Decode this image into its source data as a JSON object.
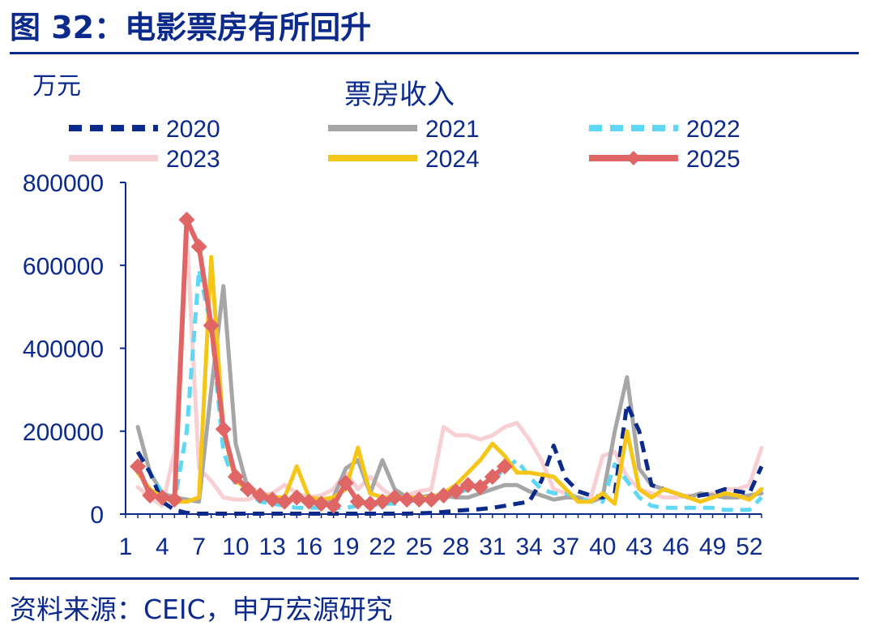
{
  "figure": {
    "title": "图 32：电影票房有所回升",
    "source": "资料来源：CEIC，申万宏源研究"
  },
  "colors": {
    "brand": "#0b2a8c"
  },
  "chart_data": {
    "type": "line",
    "title": "票房收入",
    "ylabel": "万元",
    "xlabel": "",
    "ylim": [
      0,
      800000
    ],
    "xlim": [
      1,
      53
    ],
    "yticks": [
      "0",
      "200000",
      "400000",
      "600000",
      "800000"
    ],
    "ytick_values": [
      0,
      200000,
      400000,
      600000,
      800000
    ],
    "xticks": [
      "1",
      "4",
      "7",
      "10",
      "13",
      "16",
      "19",
      "22",
      "25",
      "28",
      "31",
      "34",
      "37",
      "40",
      "43",
      "46",
      "49",
      "52"
    ],
    "xtick_values": [
      1,
      4,
      7,
      10,
      13,
      16,
      19,
      22,
      25,
      28,
      31,
      34,
      37,
      40,
      43,
      46,
      49,
      52
    ],
    "legend_position": "top",
    "grid": false,
    "series": [
      {
        "name": "2020",
        "color": "#0b2a8c",
        "style": "dashed",
        "x": [
          2,
          3,
          4,
          5,
          6,
          7,
          8,
          9,
          10,
          11,
          12,
          13,
          14,
          15,
          16,
          17,
          18,
          19,
          20,
          21,
          22,
          23,
          24,
          25,
          26,
          27,
          28,
          29,
          30,
          31,
          32,
          33,
          34,
          35,
          36,
          37,
          38,
          39,
          40,
          41,
          42,
          43,
          44,
          45,
          46,
          47,
          48,
          49,
          50,
          51,
          52,
          53
        ],
        "values": [
          150000,
          100000,
          30000,
          10000,
          3000,
          1000,
          1000,
          1000,
          1000,
          1000,
          1000,
          1000,
          1000,
          1000,
          1000,
          1000,
          1000,
          1000,
          1000,
          1000,
          1000,
          1000,
          1000,
          2000,
          3000,
          5000,
          8000,
          10000,
          12000,
          15000,
          20000,
          25000,
          30000,
          80000,
          165000,
          85000,
          55000,
          45000,
          40000,
          50000,
          265000,
          200000,
          70000,
          60000,
          50000,
          40000,
          45000,
          50000,
          60000,
          55000,
          50000,
          115000
        ]
      },
      {
        "name": "2021",
        "color": "#a6a6a6",
        "style": "solid",
        "x": [
          2,
          3,
          4,
          5,
          6,
          7,
          8,
          9,
          10,
          11,
          12,
          13,
          14,
          15,
          16,
          17,
          18,
          19,
          20,
          21,
          22,
          23,
          24,
          25,
          26,
          27,
          28,
          29,
          30,
          31,
          32,
          33,
          34,
          35,
          36,
          37,
          38,
          39,
          40,
          41,
          42,
          43,
          44,
          45,
          46,
          47,
          48,
          49,
          50,
          51,
          52,
          53
        ],
        "values": [
          210000,
          100000,
          50000,
          40000,
          35000,
          30000,
          300000,
          550000,
          170000,
          60000,
          40000,
          30000,
          30000,
          40000,
          30000,
          25000,
          40000,
          110000,
          130000,
          50000,
          130000,
          60000,
          40000,
          40000,
          45000,
          45000,
          40000,
          40000,
          50000,
          60000,
          70000,
          70000,
          55000,
          45000,
          35000,
          40000,
          40000,
          30000,
          40000,
          200000,
          330000,
          110000,
          70000,
          60000,
          50000,
          40000,
          50000,
          45000,
          40000,
          40000,
          45000,
          50000
        ]
      },
      {
        "name": "2022",
        "color": "#5ed8f5",
        "style": "dashed",
        "x": [
          2,
          3,
          4,
          5,
          6,
          7,
          8,
          9,
          10,
          11,
          12,
          13,
          14,
          15,
          16,
          17,
          18,
          19,
          20,
          21,
          22,
          23,
          24,
          25,
          26,
          27,
          28,
          29,
          30,
          31,
          32,
          33,
          34,
          35,
          36,
          37,
          38,
          39,
          40,
          41,
          42,
          43,
          44,
          45,
          46,
          47,
          48,
          49,
          50,
          51,
          52,
          53
        ],
        "values": [
          150000,
          100000,
          50000,
          30000,
          200000,
          590000,
          450000,
          150000,
          70000,
          50000,
          30000,
          25000,
          20000,
          15000,
          15000,
          15000,
          15000,
          15000,
          20000,
          20000,
          25000,
          25000,
          30000,
          35000,
          40000,
          45000,
          50000,
          60000,
          70000,
          80000,
          110000,
          130000,
          90000,
          60000,
          50000,
          50000,
          40000,
          30000,
          30000,
          120000,
          80000,
          40000,
          20000,
          15000,
          15000,
          15000,
          15000,
          15000,
          10000,
          10000,
          10000,
          40000
        ]
      },
      {
        "name": "2023",
        "color": "#f8cfd3",
        "style": "solid",
        "x": [
          2,
          3,
          4,
          5,
          6,
          7,
          8,
          9,
          10,
          11,
          12,
          13,
          14,
          15,
          16,
          17,
          18,
          19,
          20,
          21,
          22,
          23,
          24,
          25,
          26,
          27,
          28,
          29,
          30,
          31,
          32,
          33,
          34,
          35,
          36,
          37,
          38,
          39,
          40,
          41,
          42,
          43,
          44,
          45,
          46,
          47,
          48,
          49,
          50,
          51,
          52,
          53
        ],
        "values": [
          65000,
          40000,
          20000,
          150000,
          670000,
          110000,
          80000,
          40000,
          35000,
          35000,
          45000,
          50000,
          70000,
          50000,
          40000,
          45000,
          60000,
          100000,
          60000,
          90000,
          60000,
          40000,
          45000,
          55000,
          60000,
          210000,
          190000,
          190000,
          180000,
          190000,
          210000,
          220000,
          180000,
          130000,
          60000,
          50000,
          40000,
          35000,
          140000,
          150000,
          90000,
          60000,
          50000,
          40000,
          40000,
          45000,
          45000,
          50000,
          60000,
          60000,
          70000,
          160000
        ]
      },
      {
        "name": "2024",
        "color": "#f5c518",
        "style": "solid",
        "x": [
          2,
          3,
          4,
          5,
          6,
          7,
          8,
          9,
          10,
          11,
          12,
          13,
          14,
          15,
          16,
          17,
          18,
          19,
          20,
          21,
          22,
          23,
          24,
          25,
          26,
          27,
          28,
          29,
          30,
          31,
          32,
          33,
          34,
          35,
          36,
          37,
          38,
          39,
          40,
          41,
          42,
          43,
          44,
          45,
          46,
          47,
          48,
          49,
          50,
          51,
          52,
          53
        ],
        "values": [
          100000,
          60000,
          40000,
          30000,
          30000,
          40000,
          620000,
          200000,
          80000,
          60000,
          50000,
          40000,
          40000,
          115000,
          40000,
          35000,
          40000,
          60000,
          160000,
          50000,
          40000,
          40000,
          40000,
          40000,
          40000,
          50000,
          70000,
          100000,
          130000,
          170000,
          140000,
          100000,
          100000,
          95000,
          90000,
          60000,
          30000,
          30000,
          50000,
          25000,
          200000,
          60000,
          40000,
          60000,
          50000,
          40000,
          30000,
          40000,
          50000,
          45000,
          35000,
          60000
        ]
      },
      {
        "name": "2025",
        "color": "#e06666",
        "style": "solid-diamond",
        "x": [
          2,
          3,
          4,
          5,
          6,
          7,
          8,
          9,
          10,
          11,
          12,
          13,
          14,
          15,
          16,
          17,
          18,
          19,
          20,
          21,
          22,
          23,
          24,
          25,
          26,
          27,
          28,
          29,
          30,
          31,
          32
        ],
        "values": [
          115000,
          45000,
          40000,
          35000,
          710000,
          645000,
          455000,
          205000,
          90000,
          60000,
          45000,
          35000,
          30000,
          40000,
          30000,
          25000,
          20000,
          75000,
          30000,
          25000,
          30000,
          40000,
          35000,
          35000,
          35000,
          45000,
          55000,
          70000,
          65000,
          90000,
          115000
        ]
      }
    ]
  }
}
